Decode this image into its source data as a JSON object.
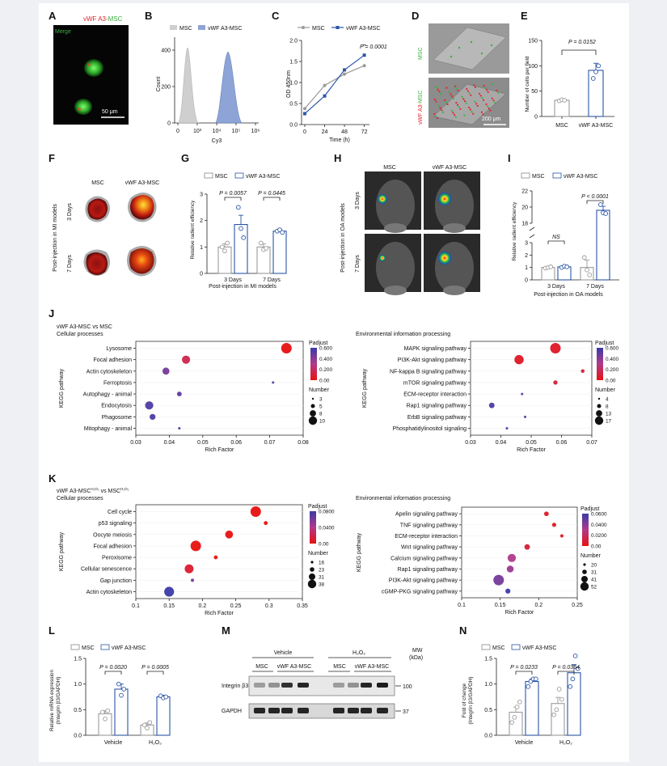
{
  "colors": {
    "msc": "#9a9a9a",
    "vwf": "#2b55a6",
    "red": "#e0262b",
    "green": "#3cb043"
  },
  "panelA": {
    "label": "A",
    "title_red": "vWF A3-",
    "title_green": "MSC",
    "merge": "Merge",
    "scale": "50 μm"
  },
  "panelB": {
    "label": "B",
    "legend": [
      "MSC",
      "vWF A3-MSC"
    ],
    "ylabel": "Count",
    "xlabel": "Cy3",
    "yticks": [
      "0",
      "200",
      "400"
    ],
    "xticks": [
      "0",
      "10³",
      "10⁴",
      "10⁵",
      "10⁶"
    ]
  },
  "panelC": {
    "label": "C",
    "legend": [
      "MSC",
      "vWF A3-MSC"
    ],
    "ylabel": "OD 450nm",
    "xlabel": "Time (h)",
    "pval": "P = 0.0001",
    "yticks": [
      "0.0",
      "0.5",
      "1.0",
      "1.5",
      "2.0"
    ],
    "xticks": [
      "0",
      "24",
      "48",
      "72"
    ]
  },
  "panelD": {
    "label": "D",
    "top": "MSC",
    "bottom_red": "vWF A3-",
    "bottom_green": "MSC",
    "scale": "200 μm"
  },
  "panelE": {
    "label": "E",
    "ylabel": "Number of cells per field",
    "pval": "P = 0.0152",
    "yticks": [
      "0",
      "50",
      "100",
      "150"
    ],
    "xticks": [
      "MSC",
      "vWF A3-MSC"
    ]
  },
  "panelF": {
    "label": "F",
    "cols": [
      "MSC",
      "vWF A3-MSC"
    ],
    "side": "Post-injection in MI models",
    "rows": [
      "3 Days",
      "7 Days"
    ]
  },
  "panelG": {
    "label": "G",
    "legend": [
      "MSC",
      "vWF A3-MSC"
    ],
    "ylabel": "Relative radient efficiency",
    "xlabel": "Post-injection in MI models",
    "p1": "P = 0.0057",
    "p2": "P = 0.0445",
    "yticks": [
      "0",
      "1",
      "2",
      "3"
    ],
    "xticks": [
      "3 Days",
      "7 Days"
    ]
  },
  "panelH": {
    "label": "H",
    "cols": [
      "MSC",
      "vWF A3-MSC"
    ],
    "side": "Post-injection in OA models",
    "rows": [
      "3 Days",
      "7 Days"
    ]
  },
  "panelI": {
    "label": "I",
    "legend": [
      "MSC",
      "vWF A3-MSC"
    ],
    "ylabel": "Relative radient efficiency",
    "xlabel": "Post-injection in OA models",
    "ns": "NS",
    "pval": "P < 0.0001",
    "yticks_low": [
      "0",
      "1",
      "2",
      "3"
    ],
    "yticks_high": [
      "18",
      "20",
      "22"
    ],
    "xticks": [
      "3 Days",
      "7 Days"
    ]
  },
  "panelJ": {
    "label": "J",
    "title1": "vWF A3-MSC vs MSC",
    "title2": "Cellular processes",
    "left_terms": [
      "Lysosome",
      "Focal adhesion",
      "Actin cytoskeleton",
      "Ferroptosis",
      "Autophagy - animal",
      "Endocytosis",
      "Phagosome",
      "Mitophagy - animal"
    ],
    "right_title": "Environmental information processing",
    "right_terms": [
      "MAPK signaling pathway",
      "PI3K-Akt signaling pathway",
      "NF-kappa B signaling pathway",
      "mTOR signaling pathway",
      "ECM-receptor interaction",
      "Rap1 signaling pathway",
      "ErbB signaling pathway",
      "Phosphatidylinositol signaling"
    ],
    "ylabel": "KEGG pathway",
    "xlabel": "Rich Factor",
    "left_xticks": [
      "0.03",
      "0.04",
      "0.05",
      "0.06",
      "0.07",
      "0.08"
    ],
    "right_xticks": [
      "0.03",
      "0.04",
      "0.05",
      "0.06",
      "0.07"
    ],
    "padj_title": "Padjust",
    "padj_left": [
      "0.600",
      "0.400",
      "0.200",
      "0.00"
    ],
    "padj_right": [
      "0.600",
      "0.400",
      "0.200",
      "0.00"
    ],
    "num_title": "Number",
    "num_left": [
      "3",
      "5",
      "8",
      "10"
    ],
    "num_right": [
      "4",
      "8",
      "13",
      "17"
    ]
  },
  "panelK": {
    "label": "K",
    "title1_main": "vWF A3-MSC",
    "title1_sup1": "H₂O₂",
    "title1_mid": " vs MSC",
    "title1_sup2": "H₂O₂",
    "title2": "Cellular processes",
    "left_terms": [
      "Cell cycle",
      "p53 signaling",
      "Oocyte meiosis",
      "Focal adhesion",
      "Peroxisome",
      "Cellular senescence",
      "Gap junction",
      "Actin cytoskeleton"
    ],
    "right_title": "Environmental information processing",
    "right_terms": [
      "Apelin signaling pathway",
      "TNF signaling pathway",
      "ECM-receptor interaction",
      "Wnt signaling pathway",
      "Calcium signaling pathway",
      "Rap1 signaling pathway",
      "PI3K-Akt signaling pathway",
      "cGMP-PKG signaling pathway"
    ],
    "ylabel": "KEGG pathway",
    "xlabel": "Rich Factor",
    "left_xticks": [
      "0.1",
      "0.15",
      "0.2",
      "0.25",
      "0.3",
      "0.35"
    ],
    "right_xticks": [
      "0.1",
      "0.15",
      "0.2",
      "0.25"
    ],
    "padj_title": "Padjust",
    "padj_left": [
      "0.0800",
      "0.0400",
      "0.00"
    ],
    "padj_right": [
      "0.0600",
      "0.0400",
      "0.0200",
      "0.00"
    ],
    "num_title": "Number",
    "num_left": [
      "16",
      "23",
      "31",
      "38"
    ],
    "num_right": [
      "20",
      "31",
      "41",
      "52"
    ]
  },
  "panelL": {
    "label": "L",
    "legend": [
      "MSC",
      "vWF A3-MSC"
    ],
    "ylabel1": "Relative mRNA expression",
    "ylabel2": "(Integrin β3/GAPDH)",
    "p1": "P = 0.0020",
    "p2": "P = 0.0005",
    "yticks": [
      "0.0",
      "0.5",
      "1.0",
      "1.5"
    ],
    "xticks": [
      "Vehicle",
      "H₂O₂"
    ]
  },
  "panelM": {
    "label": "M",
    "groups": [
      "Vehicle",
      "H₂O₂"
    ],
    "sub": [
      "MSC",
      "vWF A3-MSC",
      "MSC",
      "vWF A3-MSC"
    ],
    "mw": "MW",
    "kda": "(kDa)",
    "rows": [
      "Integrin β3",
      "GAPDH"
    ],
    "markers": [
      "100",
      "37"
    ]
  },
  "panelN": {
    "label": "N",
    "legend": [
      "MSC",
      "vWF A3-MSC"
    ],
    "ylabel1": "Fold of change",
    "ylabel2": "(Integrin β3/GAPDH)",
    "p1": "P = 0.0233",
    "p2": "P = 0.0364",
    "yticks": [
      "0.0",
      "0.5",
      "1.0",
      "1.5"
    ],
    "xticks": [
      "Vehicle",
      "H₂O₂"
    ]
  },
  "chart_data": [
    {
      "id": "C",
      "type": "line",
      "title": "",
      "xlabel": "Time (h)",
      "ylabel": "OD 450nm",
      "ylim": [
        0,
        2
      ],
      "x": [
        0,
        24,
        48,
        72
      ],
      "series": [
        {
          "name": "MSC",
          "values": [
            0.38,
            0.93,
            1.2,
            1.4
          ]
        },
        {
          "name": "vWF A3-MSC",
          "values": [
            0.26,
            0.68,
            1.3,
            1.65
          ]
        }
      ]
    },
    {
      "id": "E",
      "type": "bar",
      "categories": [
        "MSC",
        "vWF A3-MSC"
      ],
      "values": [
        32,
        91
      ],
      "errors": [
        2,
        14
      ],
      "ylabel": "Number of cells per field",
      "ylim": [
        0,
        150
      ],
      "points": [
        [
          31,
          33,
          32
        ],
        [
          75,
          88,
          100
        ]
      ]
    },
    {
      "id": "G",
      "type": "bar",
      "categories": [
        "3 Days",
        "7 Days"
      ],
      "series": [
        {
          "name": "MSC",
          "values": [
            1.0,
            1.0
          ],
          "errors": [
            0.12,
            0.12
          ]
        },
        {
          "name": "vWF A3-MSC",
          "values": [
            1.85,
            1.6
          ],
          "errors": [
            0.35,
            0.06
          ]
        }
      ],
      "points": {
        "MSC": [
          [
            1.0,
            0.85,
            1.15
          ],
          [
            1.15,
            0.9,
            0.95
          ]
        ],
        "vWF A3-MSC": [
          [
            2.5,
            1.7,
            1.35
          ],
          [
            1.6,
            1.65,
            1.55
          ]
        ]
      },
      "ylabel": "Relative radient efficiency",
      "ylim": [
        0,
        3
      ]
    },
    {
      "id": "I",
      "type": "bar",
      "categories": [
        "3 Days",
        "7 Days"
      ],
      "series": [
        {
          "name": "MSC",
          "values": [
            1.0,
            1.0
          ],
          "errors": [
            0.05,
            0.6
          ]
        },
        {
          "name": "vWF A3-MSC",
          "values": [
            1.05,
            19.6
          ],
          "errors": [
            0.05,
            0.5
          ]
        }
      ],
      "points": {
        "MSC": [
          [
            0.95,
            1.0,
            1.05
          ],
          [
            1.8,
            0.8,
            0.4
          ]
        ],
        "vWF A3-MSC": [
          [
            1.0,
            1.1,
            1.05
          ],
          [
            20.3,
            19.3,
            19.2
          ]
        ]
      },
      "ylabel": "Relative radient efficiency",
      "broken_axis": [
        3,
        18
      ],
      "ylim": [
        0,
        22
      ]
    },
    {
      "id": "J-left",
      "type": "scatter",
      "xlabel": "Rich Factor",
      "xlim": [
        0.03,
        0.08
      ],
      "terms": [
        "Lysosome",
        "Focal adhesion",
        "Actin cytoskeleton",
        "Ferroptosis",
        "Autophagy - animal",
        "Endocytosis",
        "Phagosome",
        "Mitophagy - animal"
      ],
      "x": [
        0.075,
        0.045,
        0.039,
        0.071,
        0.043,
        0.034,
        0.035,
        0.043
      ],
      "number": [
        10,
        8,
        7,
        3,
        5,
        8,
        6,
        3
      ],
      "padjust": [
        0.0,
        0.15,
        0.45,
        0.55,
        0.5,
        0.55,
        0.55,
        0.6
      ]
    },
    {
      "id": "J-right",
      "type": "scatter",
      "xlabel": "Rich Factor",
      "xlim": [
        0.03,
        0.07
      ],
      "terms": [
        "MAPK signaling pathway",
        "PI3K-Akt signaling pathway",
        "NF-kappa B signaling pathway",
        "mTOR signaling pathway",
        "ECM-receptor interaction",
        "Rap1 signaling pathway",
        "ErbB signaling pathway",
        "Phosphatidylinositol signaling"
      ],
      "x": [
        0.058,
        0.046,
        0.067,
        0.058,
        0.047,
        0.037,
        0.048,
        0.042
      ],
      "number": [
        17,
        15,
        6,
        7,
        4,
        9,
        4,
        4
      ],
      "padjust": [
        0.05,
        0.05,
        0.1,
        0.1,
        0.5,
        0.55,
        0.55,
        0.55
      ]
    },
    {
      "id": "K-left",
      "type": "scatter",
      "xlabel": "Rich Factor",
      "xlim": [
        0.1,
        0.35
      ],
      "terms": [
        "Cell cycle",
        "p53 signaling",
        "Oocyte meiosis",
        "Focal adhesion",
        "Peroxisome",
        "Cellular senescence",
        "Gap junction",
        "Actin cytoskeleton"
      ],
      "x": [
        0.28,
        0.295,
        0.24,
        0.19,
        0.22,
        0.18,
        0.185,
        0.15
      ],
      "number": [
        38,
        18,
        30,
        38,
        18,
        33,
        16,
        36
      ],
      "padjust": [
        0.0,
        0.0,
        0.0,
        0.0,
        0.0,
        0.01,
        0.06,
        0.08
      ]
    },
    {
      "id": "K-right",
      "type": "scatter",
      "xlabel": "Rich Factor",
      "xlim": [
        0.1,
        0.25
      ],
      "terms": [
        "Apelin signaling pathway",
        "TNF signaling pathway",
        "ECM-receptor interaction",
        "Wnt signaling pathway",
        "Calcium signaling pathway",
        "Rap1 signaling pathway",
        "PI3K-Akt signaling pathway",
        "cGMP-PKG signaling pathway"
      ],
      "x": [
        0.21,
        0.22,
        0.23,
        0.185,
        0.165,
        0.163,
        0.148,
        0.16
      ],
      "number": [
        26,
        24,
        20,
        30,
        42,
        36,
        52,
        28
      ],
      "padjust": [
        0.005,
        0.005,
        0.005,
        0.01,
        0.03,
        0.035,
        0.045,
        0.06
      ]
    },
    {
      "id": "L",
      "type": "bar",
      "categories": [
        "Vehicle",
        "H₂O₂"
      ],
      "series": [
        {
          "name": "MSC",
          "values": [
            0.42,
            0.2
          ],
          "errors": [
            0.06,
            0.04
          ]
        },
        {
          "name": "vWF A3-MSC",
          "values": [
            0.9,
            0.75
          ],
          "errors": [
            0.1,
            0.03
          ]
        }
      ],
      "points": {
        "MSC": [
          [
            0.45,
            0.32,
            0.48
          ],
          [
            0.2,
            0.14,
            0.25
          ]
        ],
        "vWF A3-MSC": [
          [
            1.0,
            0.78,
            0.9
          ],
          [
            0.77,
            0.73,
            0.75
          ]
        ]
      },
      "ylabel": "Relative mRNA expression (Integrin β3/GAPDH)",
      "ylim": [
        0,
        1.5
      ]
    },
    {
      "id": "N",
      "type": "bar",
      "categories": [
        "Vehicle",
        "H₂O₂"
      ],
      "series": [
        {
          "name": "MSC",
          "values": [
            0.45,
            0.62
          ],
          "errors": [
            0.1,
            0.12
          ]
        },
        {
          "name": "vWF A3-MSC",
          "values": [
            1.05,
            1.22
          ],
          "errors": [
            0.05,
            0.16
          ]
        }
      ],
      "points": {
        "MSC": [
          [
            0.25,
            0.35,
            0.55,
            0.65
          ],
          [
            0.4,
            0.5,
            0.9,
            0.7
          ]
        ],
        "vWF A3-MSC": [
          [
            0.95,
            1.05,
            1.1,
            1.1
          ],
          [
            0.95,
            1.1,
            1.55,
            1.3
          ]
        ]
      },
      "ylabel": "Fold of change (Integrin β3/GAPDH)",
      "ylim": [
        0,
        1.5
      ]
    }
  ]
}
